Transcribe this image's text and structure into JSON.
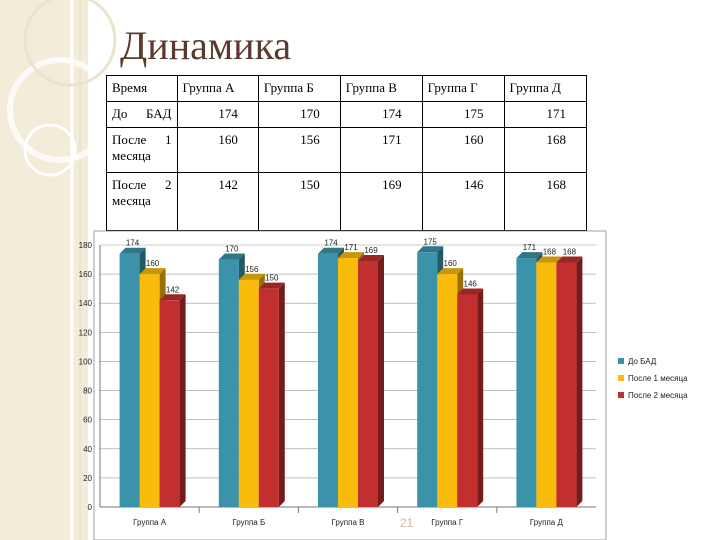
{
  "title": "Динамика",
  "page_number": "21",
  "table": {
    "header": [
      "Время",
      "Группа А",
      "Группа Б",
      "Группа В",
      "Группа Г",
      "Группа Д"
    ],
    "rows": [
      [
        "До БАД",
        174,
        170,
        174,
        175,
        171
      ],
      [
        "После 1 месяца",
        160,
        156,
        171,
        160,
        168
      ],
      [
        "После 2 месяца",
        142,
        150,
        169,
        146,
        168
      ]
    ]
  },
  "chart_data": {
    "type": "bar",
    "categories": [
      "Группа А",
      "Группа Б",
      "Группа В",
      "Группа Г",
      "Группа Д"
    ],
    "series": [
      {
        "name": "До БАД",
        "color": "#3b93a9",
        "values": [
          174,
          170,
          174,
          175,
          171
        ]
      },
      {
        "name": "После 1 месяца",
        "color": "#f9bb0c",
        "values": [
          160,
          156,
          171,
          160,
          168
        ]
      },
      {
        "name": "После 2 месяца",
        "color": "#c22f2f",
        "values": [
          142,
          150,
          169,
          146,
          168
        ]
      }
    ],
    "ylim": [
      0,
      180
    ],
    "yticks": [
      0,
      20,
      40,
      60,
      80,
      100,
      120,
      140,
      160,
      180
    ],
    "grid": true,
    "legend": "right"
  }
}
